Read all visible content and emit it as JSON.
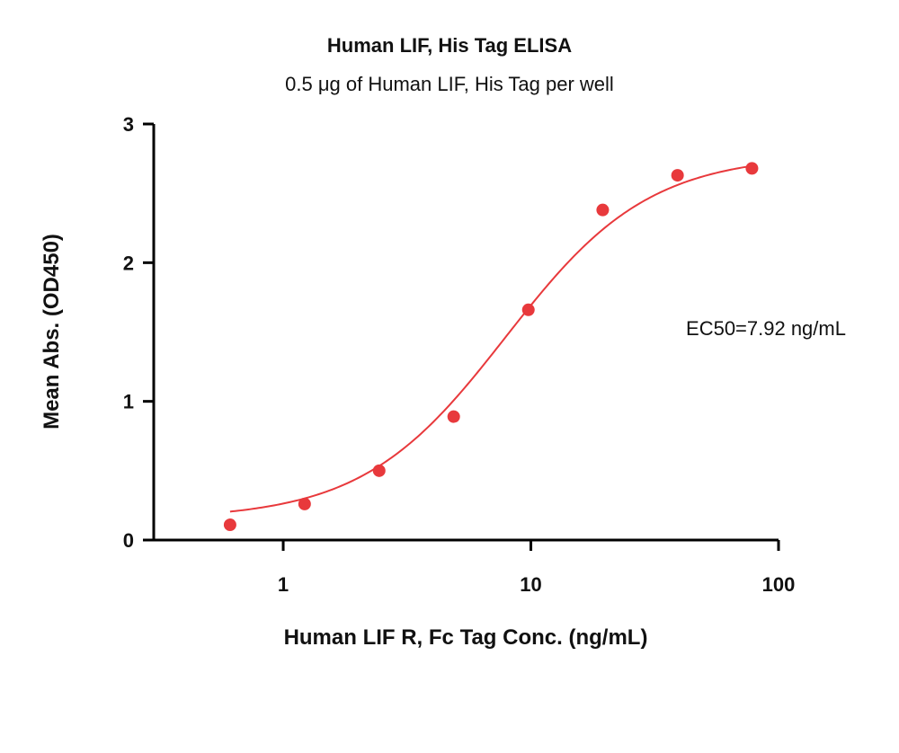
{
  "chart_data": {
    "type": "scatter",
    "title": "Human LIF, His Tag ELISA",
    "subtitle": "0.5 μg of Human LIF, His Tag per well",
    "xlabel": "Human LIF R, Fc Tag Conc. (ng/mL)",
    "ylabel": "Mean Abs. (OD450)",
    "x_scale": "log",
    "xlim": [
      0.3,
      100
    ],
    "ylim": [
      0,
      3
    ],
    "x_ticks": [
      1,
      10,
      100
    ],
    "x_tick_labels": [
      "1",
      "10",
      "100"
    ],
    "y_ticks": [
      0,
      1,
      2,
      3
    ],
    "y_tick_labels": [
      "0",
      "1",
      "2",
      "3"
    ],
    "grid": false,
    "series": [
      {
        "color": "#e8393c",
        "x": [
          0.61,
          1.22,
          2.44,
          4.88,
          9.77,
          19.5,
          39.1,
          78.1
        ],
        "y": [
          0.11,
          0.26,
          0.5,
          0.89,
          1.66,
          2.38,
          2.63,
          2.68
        ]
      }
    ],
    "fit": {
      "type": "4PL",
      "bottom": 0.15,
      "top": 2.78,
      "ec50": 7.92,
      "hill": 1.5,
      "color": "#e8393c"
    },
    "annotations": [
      "EC50=7.92 ng/mL"
    ]
  }
}
